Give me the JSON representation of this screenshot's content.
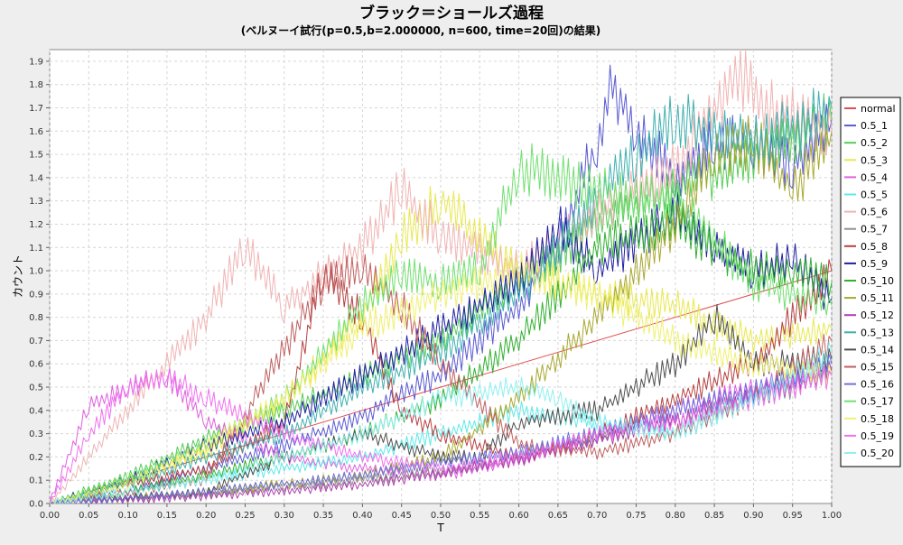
{
  "chart_data": {
    "type": "line",
    "title": "ブラック＝ショールズ過程",
    "subtitle": "(ベルヌーイ試行(p=0.5,b=2.000000, n=600, time=20回)の結果)",
    "xlabel": "T",
    "ylabel": "カウント",
    "xlim": [
      0,
      1
    ],
    "ylim": [
      0,
      1.95
    ],
    "x_ticks": [
      "0.00",
      "0.05",
      "0.10",
      "0.15",
      "0.20",
      "0.25",
      "0.30",
      "0.35",
      "0.40",
      "0.45",
      "0.50",
      "0.55",
      "0.60",
      "0.65",
      "0.70",
      "0.75",
      "0.80",
      "0.85",
      "0.90",
      "0.95",
      "1.00"
    ],
    "y_ticks": [
      "0.0",
      "0.1",
      "0.2",
      "0.3",
      "0.4",
      "0.5",
      "0.6",
      "0.7",
      "0.8",
      "0.9",
      "1.0",
      "1.1",
      "1.2",
      "1.3",
      "1.4",
      "1.5",
      "1.6",
      "1.7",
      "1.8",
      "1.9"
    ],
    "grid": true,
    "legend_position": "right",
    "series": [
      {
        "name": "normal",
        "color": "#e05050",
        "x": [
          0,
          1
        ],
        "y": [
          0,
          1.0
        ]
      },
      {
        "name": "0.5_1",
        "color": "#5a5ad2",
        "x": [
          0,
          0.1,
          0.2,
          0.3,
          0.4,
          0.5,
          0.6,
          0.65,
          0.7,
          0.72,
          0.75,
          0.8,
          0.85,
          0.9,
          0.95,
          1.0
        ],
        "y": [
          0,
          0.05,
          0.15,
          0.25,
          0.38,
          0.55,
          0.85,
          1.1,
          1.55,
          1.8,
          1.6,
          1.4,
          1.55,
          1.55,
          1.45,
          1.65
        ]
      },
      {
        "name": "0.5_2",
        "color": "#55cc55",
        "x": [
          0,
          0.1,
          0.2,
          0.3,
          0.4,
          0.5,
          0.6,
          0.7,
          0.8,
          0.9,
          1.0
        ],
        "y": [
          0,
          0.12,
          0.28,
          0.4,
          0.55,
          0.7,
          0.95,
          1.2,
          1.35,
          1.5,
          1.65
        ]
      },
      {
        "name": "0.5_3",
        "color": "#e8e850",
        "x": [
          0,
          0.1,
          0.2,
          0.3,
          0.4,
          0.45,
          0.5,
          0.6,
          0.7,
          0.8,
          0.9,
          1.0
        ],
        "y": [
          0,
          0.1,
          0.22,
          0.45,
          0.8,
          1.15,
          1.3,
          1.0,
          0.9,
          0.85,
          0.7,
          0.75
        ]
      },
      {
        "name": "0.5_4",
        "color": "#e060e0",
        "x": [
          0,
          0.05,
          0.1,
          0.15,
          0.2,
          0.3,
          0.4,
          0.5,
          0.6,
          0.7,
          0.8,
          0.9,
          1.0
        ],
        "y": [
          0,
          0.42,
          0.5,
          0.55,
          0.35,
          0.2,
          0.15,
          0.12,
          0.18,
          0.3,
          0.4,
          0.5,
          0.57
        ]
      },
      {
        "name": "0.5_5",
        "color": "#60e8e8",
        "x": [
          0,
          0.1,
          0.2,
          0.3,
          0.4,
          0.5,
          0.6,
          0.7,
          0.8,
          0.9,
          1.0
        ],
        "y": [
          0,
          0.05,
          0.1,
          0.15,
          0.2,
          0.3,
          0.4,
          0.35,
          0.3,
          0.45,
          0.6
        ]
      },
      {
        "name": "0.5_6",
        "color": "#f0b4b4",
        "x": [
          0,
          0.1,
          0.2,
          0.25,
          0.3,
          0.4,
          0.45,
          0.5,
          0.6,
          0.7,
          0.8,
          0.88,
          0.92,
          1.0
        ],
        "y": [
          0,
          0.4,
          0.8,
          1.1,
          0.85,
          1.1,
          1.35,
          1.15,
          1.0,
          1.25,
          1.45,
          1.85,
          1.7,
          1.6
        ]
      },
      {
        "name": "0.5_7",
        "color": "#909090",
        "x": [
          0,
          0.2,
          0.4,
          0.5,
          0.6,
          0.7,
          0.8,
          0.9,
          1.0
        ],
        "y": [
          0,
          0.04,
          0.1,
          0.14,
          0.2,
          0.28,
          0.36,
          0.45,
          0.55
        ]
      },
      {
        "name": "0.5_8",
        "color": "#b84040",
        "x": [
          0,
          0.1,
          0.2,
          0.3,
          0.35,
          0.4,
          0.45,
          0.5,
          0.6,
          0.7,
          0.8,
          0.9,
          1.0
        ],
        "y": [
          0,
          0.08,
          0.15,
          0.35,
          1.0,
          0.8,
          0.4,
          0.3,
          0.2,
          0.3,
          0.45,
          0.6,
          1.0
        ]
      },
      {
        "name": "0.5_9",
        "color": "#2020a0",
        "x": [
          0,
          0.1,
          0.2,
          0.3,
          0.4,
          0.5,
          0.6,
          0.65,
          0.7,
          0.8,
          0.85,
          0.9,
          0.95,
          1.0
        ],
        "y": [
          0,
          0.1,
          0.25,
          0.35,
          0.55,
          0.75,
          0.95,
          1.2,
          1.0,
          1.25,
          1.1,
          1.0,
          1.05,
          0.88
        ]
      },
      {
        "name": "0.5_10",
        "color": "#30b030",
        "x": [
          0,
          0.1,
          0.2,
          0.3,
          0.4,
          0.5,
          0.6,
          0.7,
          0.8,
          0.9,
          0.95,
          1.0
        ],
        "y": [
          0,
          0.05,
          0.12,
          0.2,
          0.3,
          0.45,
          0.7,
          1.1,
          1.2,
          1.0,
          1.0,
          0.95
        ]
      },
      {
        "name": "0.5_11",
        "color": "#a8a830",
        "x": [
          0,
          0.2,
          0.4,
          0.5,
          0.6,
          0.7,
          0.8,
          0.85,
          0.9,
          0.95,
          1.0
        ],
        "y": [
          0,
          0.05,
          0.12,
          0.2,
          0.45,
          0.8,
          1.2,
          1.5,
          1.55,
          1.35,
          1.6
        ]
      },
      {
        "name": "0.5_12",
        "color": "#b040b0",
        "x": [
          0,
          0.2,
          0.4,
          0.5,
          0.6,
          0.7,
          0.8,
          0.9,
          1.0
        ],
        "y": [
          0,
          0.03,
          0.08,
          0.13,
          0.19,
          0.27,
          0.36,
          0.46,
          0.57
        ]
      },
      {
        "name": "0.5_13",
        "color": "#40b0b0",
        "x": [
          0,
          0.1,
          0.2,
          0.3,
          0.4,
          0.5,
          0.6,
          0.7,
          0.75,
          0.8,
          0.9,
          1.0
        ],
        "y": [
          0,
          0.08,
          0.2,
          0.3,
          0.5,
          0.65,
          0.9,
          1.3,
          1.5,
          1.65,
          1.55,
          1.7
        ]
      },
      {
        "name": "0.5_14",
        "color": "#505050",
        "x": [
          0,
          0.2,
          0.3,
          0.4,
          0.5,
          0.55,
          0.6,
          0.7,
          0.8,
          0.85,
          0.9,
          1.0
        ],
        "y": [
          0,
          0.05,
          0.2,
          0.3,
          0.2,
          0.2,
          0.35,
          0.4,
          0.6,
          0.8,
          0.6,
          0.62
        ]
      },
      {
        "name": "0.5_15",
        "color": "#c06060",
        "x": [
          0,
          0.2,
          0.35,
          0.4,
          0.45,
          0.5,
          0.6,
          0.7,
          0.8,
          0.9,
          1.0
        ],
        "y": [
          0,
          0.1,
          0.95,
          1.0,
          0.85,
          0.6,
          0.25,
          0.22,
          0.3,
          0.45,
          0.7
        ]
      },
      {
        "name": "0.5_16",
        "color": "#7070e0",
        "x": [
          0,
          0.2,
          0.4,
          0.5,
          0.6,
          0.7,
          0.8,
          0.9,
          1.0
        ],
        "y": [
          0,
          0.05,
          0.12,
          0.18,
          0.22,
          0.3,
          0.4,
          0.48,
          0.6
        ]
      },
      {
        "name": "0.5_17",
        "color": "#70e070",
        "x": [
          0,
          0.1,
          0.2,
          0.3,
          0.4,
          0.45,
          0.5,
          0.55,
          0.6,
          0.7,
          0.8,
          0.9,
          1.0
        ],
        "y": [
          0,
          0.1,
          0.25,
          0.45,
          0.85,
          1.0,
          0.95,
          1.0,
          1.45,
          1.35,
          1.3,
          0.95,
          0.85
        ]
      },
      {
        "name": "0.5_18",
        "color": "#f0f070",
        "x": [
          0,
          0.1,
          0.2,
          0.3,
          0.4,
          0.5,
          0.6,
          0.7,
          0.8,
          0.9,
          1.0
        ],
        "y": [
          0,
          0.08,
          0.25,
          0.45,
          0.75,
          0.9,
          1.0,
          0.9,
          0.7,
          0.6,
          0.55
        ]
      },
      {
        "name": "0.5_19",
        "color": "#f070f0",
        "x": [
          0,
          0.05,
          0.1,
          0.15,
          0.2,
          0.3,
          0.4,
          0.5,
          0.6,
          0.7,
          0.8,
          0.9,
          1.0
        ],
        "y": [
          0,
          0.3,
          0.5,
          0.55,
          0.45,
          0.3,
          0.2,
          0.15,
          0.2,
          0.3,
          0.35,
          0.45,
          0.55
        ]
      },
      {
        "name": "0.5_20",
        "color": "#90f0f0",
        "x": [
          0,
          0.2,
          0.4,
          0.5,
          0.6,
          0.65,
          0.7,
          0.8,
          0.9,
          1.0
        ],
        "y": [
          0,
          0.1,
          0.3,
          0.45,
          0.5,
          0.45,
          0.35,
          0.3,
          0.45,
          0.65
        ]
      }
    ]
  }
}
